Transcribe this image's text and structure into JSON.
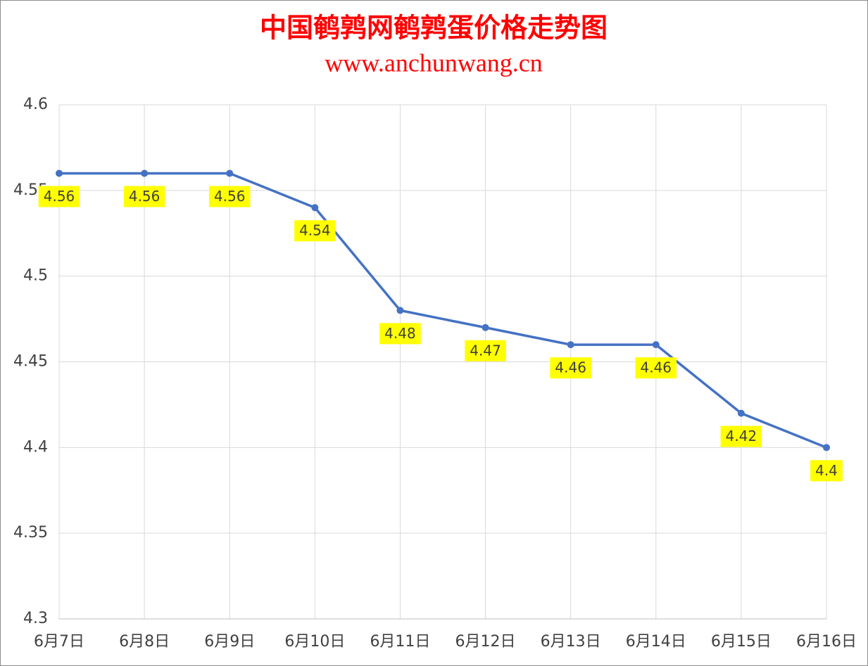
{
  "chart_data": {
    "type": "line",
    "title": "中国鹌鹑网鹌鹑蛋价格走势图",
    "subtitle": "www.anchunwang.cn",
    "categories": [
      "6月7日",
      "6月8日",
      "6月9日",
      "6月10日",
      "6月11日",
      "6月12日",
      "6月13日",
      "6月14日",
      "6月15日",
      "6月16日"
    ],
    "values": [
      4.56,
      4.56,
      4.56,
      4.54,
      4.48,
      4.47,
      4.46,
      4.46,
      4.42,
      4.4
    ],
    "color": "#4472c4",
    "ylim": [
      4.3,
      4.6
    ],
    "yticks": [
      4.3,
      4.35,
      4.4,
      4.45,
      4.5,
      4.55,
      4.6
    ],
    "grid": true
  }
}
